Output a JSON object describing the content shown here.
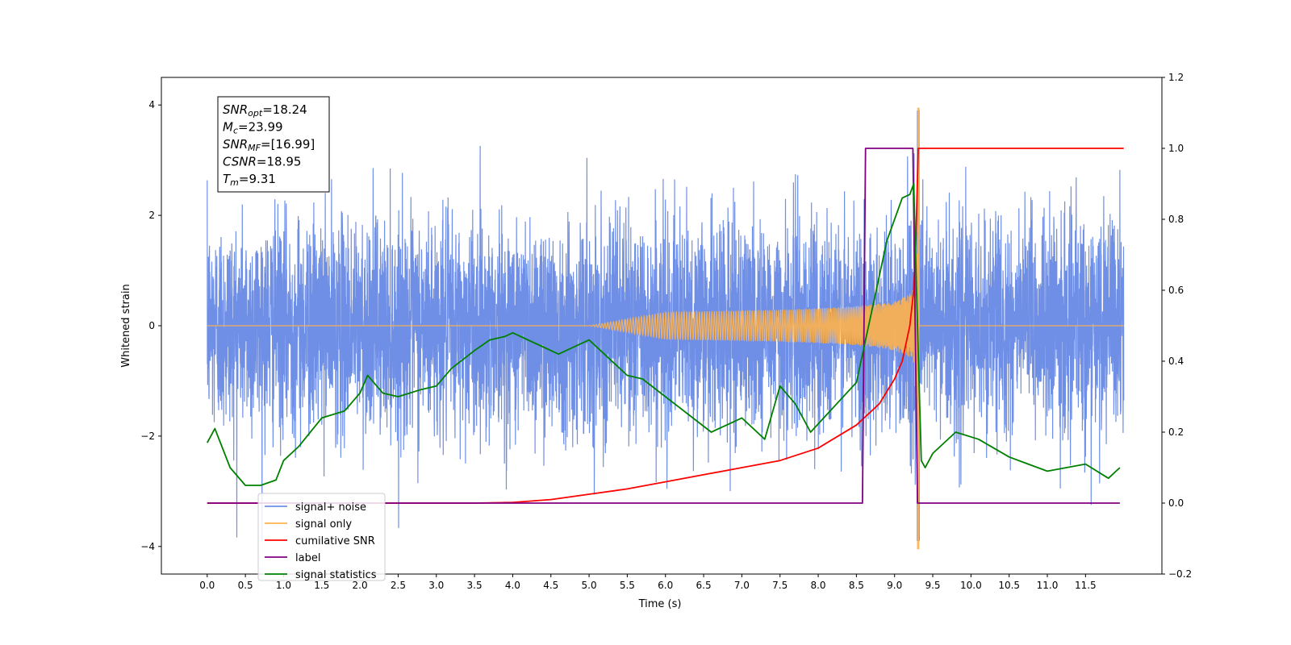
{
  "chart_data": {
    "type": "line",
    "xlabel": "Time (s)",
    "ylabel": "Whitened strain",
    "xlim": [
      -0.6,
      12.5
    ],
    "ylim": [
      -4.5,
      4.5
    ],
    "y2lim": [
      -0.2,
      1.2
    ],
    "xticks": [
      "0.0",
      "0.5",
      "1.0",
      "1.5",
      "2.0",
      "2.5",
      "3.0",
      "3.5",
      "4.0",
      "4.5",
      "5.0",
      "5.5",
      "6.0",
      "6.5",
      "7.0",
      "7.5",
      "8.0",
      "8.5",
      "9.0",
      "9.5",
      "10.0",
      "10.5",
      "11.0",
      "11.5"
    ],
    "yticks": [
      -4,
      -2,
      0,
      2,
      4
    ],
    "y2ticks": [
      -0.2,
      0.0,
      0.2,
      0.4,
      0.6,
      0.8,
      1.0,
      1.2
    ],
    "grid": false,
    "legend_placement": "lower-left",
    "annotation": {
      "lines": [
        {
          "sym": "SNR",
          "sub": "opt",
          "val": "=18.24"
        },
        {
          "sym": "M",
          "sub": "c",
          "val": "=23.99"
        },
        {
          "sym": "SNR",
          "sub": "MF",
          "val": "=[16.99]"
        },
        {
          "sym": "CSNR",
          "sub": "",
          "val": "=18.95"
        },
        {
          "sym": "T",
          "sub": "m",
          "val": "=9.31"
        }
      ]
    },
    "merger_time": 9.31,
    "series": [
      {
        "name": "signal+ noise",
        "color": "#6f8fe6",
        "axis": "left",
        "description_type": "noise",
        "sigma": 1.0,
        "range": [
          0,
          12
        ]
      },
      {
        "name": "signal only",
        "color": "#ffb24d",
        "axis": "left",
        "description_type": "chirp",
        "amplitude_at_merger": 4.0,
        "range": [
          0,
          12
        ]
      },
      {
        "name": "cumilative SNR",
        "color": "#ff0000",
        "axis": "right",
        "x": [
          0,
          3.5,
          4.0,
          4.5,
          5.0,
          5.5,
          6.0,
          6.5,
          7.0,
          7.5,
          8.0,
          8.5,
          8.8,
          9.0,
          9.1,
          9.2,
          9.25,
          9.28,
          9.31,
          12.0
        ],
        "values": [
          0,
          0,
          0.002,
          0.01,
          0.025,
          0.04,
          0.06,
          0.08,
          0.1,
          0.12,
          0.155,
          0.22,
          0.28,
          0.35,
          0.4,
          0.5,
          0.6,
          0.75,
          1.0,
          1.0
        ]
      },
      {
        "name": "label",
        "color": "#800080",
        "axis": "right",
        "x": [
          0,
          8.58,
          8.62,
          9.24,
          9.3,
          11.95
        ],
        "values": [
          0,
          0,
          1.0,
          1.0,
          0,
          0
        ]
      },
      {
        "name": "signal statistics",
        "color": "#008000",
        "axis": "right",
        "x": [
          0,
          0.1,
          0.3,
          0.5,
          0.7,
          0.9,
          1.0,
          1.2,
          1.5,
          1.8,
          2.0,
          2.1,
          2.3,
          2.5,
          2.8,
          3.0,
          3.2,
          3.5,
          3.7,
          3.9,
          4.0,
          4.3,
          4.6,
          5.0,
          5.2,
          5.5,
          5.7,
          6.0,
          6.3,
          6.6,
          7.0,
          7.3,
          7.5,
          7.7,
          7.9,
          8.2,
          8.5,
          8.7,
          8.9,
          9.1,
          9.2,
          9.25,
          9.3,
          9.35,
          9.4,
          9.5,
          9.8,
          10.1,
          10.5,
          11.0,
          11.5,
          11.8,
          11.95
        ],
        "values": [
          0.17,
          0.21,
          0.1,
          0.05,
          0.05,
          0.065,
          0.12,
          0.16,
          0.24,
          0.26,
          0.31,
          0.36,
          0.31,
          0.3,
          0.32,
          0.33,
          0.38,
          0.43,
          0.46,
          0.47,
          0.48,
          0.45,
          0.42,
          0.46,
          0.42,
          0.36,
          0.35,
          0.3,
          0.25,
          0.2,
          0.24,
          0.18,
          0.33,
          0.28,
          0.2,
          0.27,
          0.34,
          0.54,
          0.74,
          0.86,
          0.87,
          0.9,
          0.5,
          0.12,
          0.1,
          0.14,
          0.2,
          0.18,
          0.13,
          0.09,
          0.11,
          0.07,
          0.1
        ]
      }
    ]
  }
}
